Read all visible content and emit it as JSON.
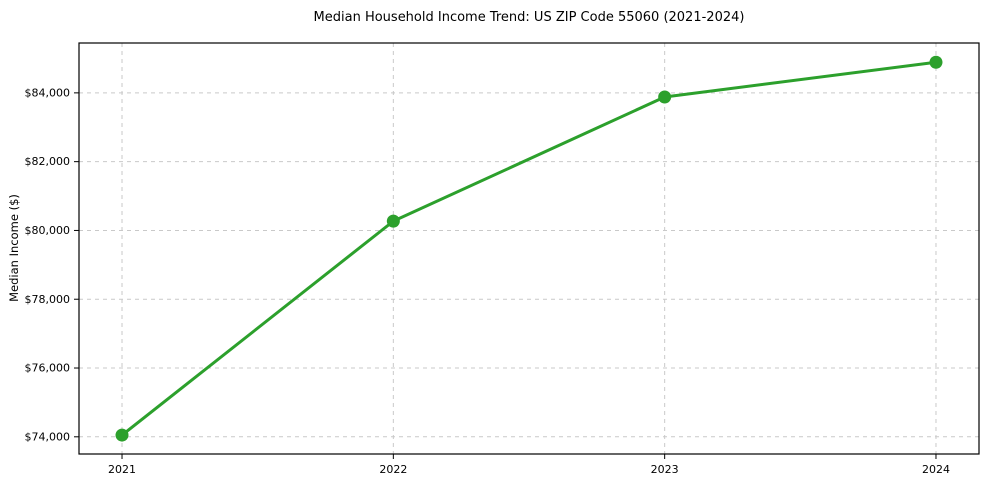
{
  "figure": {
    "background": "#ffffff",
    "plot_border_color": "#000000"
  },
  "chart_data": {
    "type": "line",
    "title": "Median Household Income Trend: US ZIP Code 55060 (2021-2024)",
    "xlabel": "",
    "ylabel": "Median Income ($)",
    "categories": [
      "2021",
      "2022",
      "2023",
      "2024"
    ],
    "series": [
      {
        "name": "Median Household Income",
        "values": [
          74050,
          80270,
          83880,
          84890
        ],
        "color": "#2ca02c",
        "marker": "circle"
      }
    ],
    "ylim": [
      73500,
      85450
    ],
    "yticks": [
      {
        "value": 74000,
        "label": "$74,000"
      },
      {
        "value": 76000,
        "label": "$76,000"
      },
      {
        "value": 78000,
        "label": "$78,000"
      },
      {
        "value": 80000,
        "label": "$80,000"
      },
      {
        "value": 82000,
        "label": "$82,000"
      },
      {
        "value": 84000,
        "label": "$84,000"
      }
    ],
    "grid": "dashed",
    "grid_color": "#c9c9c9",
    "legend": "none"
  }
}
